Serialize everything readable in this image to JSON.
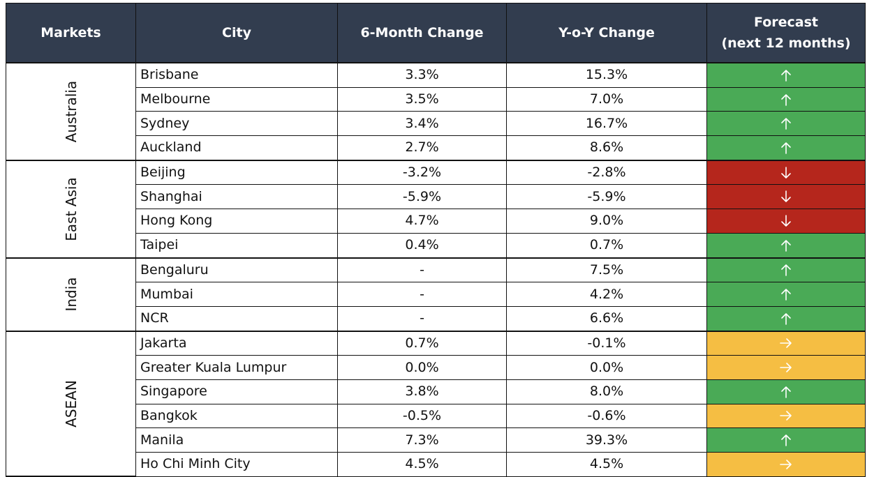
{
  "table": {
    "headers": {
      "markets": "Markets",
      "city": "City",
      "six_month": "6-Month Change",
      "yoy": "Y-o-Y Change",
      "forecast_line1": "Forecast",
      "forecast_line2": "(next 12 months)"
    },
    "forecast_legend": {
      "up": {
        "symbol": "↑",
        "color": "#4aaa56"
      },
      "down": {
        "symbol": "↓",
        "color": "#b5261c"
      },
      "flat": {
        "symbol": "→",
        "color": "#f5be43"
      }
    },
    "groups": [
      {
        "market": "Australia",
        "rows": [
          {
            "city": "Brisbane",
            "six_month": "3.3%",
            "yoy": "15.3%",
            "forecast": "up"
          },
          {
            "city": "Melbourne",
            "six_month": "3.5%",
            "yoy": "7.0%",
            "forecast": "up"
          },
          {
            "city": "Sydney",
            "six_month": "3.4%",
            "yoy": "16.7%",
            "forecast": "up"
          },
          {
            "city": "Auckland",
            "six_month": "2.7%",
            "yoy": "8.6%",
            "forecast": "up"
          }
        ]
      },
      {
        "market": "East Asia",
        "rows": [
          {
            "city": "Beijing",
            "six_month": "-3.2%",
            "yoy": "-2.8%",
            "forecast": "down"
          },
          {
            "city": "Shanghai",
            "six_month": "-5.9%",
            "yoy": "-5.9%",
            "forecast": "down"
          },
          {
            "city": "Hong Kong",
            "six_month": "4.7%",
            "yoy": "9.0%",
            "forecast": "down"
          },
          {
            "city": "Taipei",
            "six_month": "0.4%",
            "yoy": "0.7%",
            "forecast": "up"
          }
        ]
      },
      {
        "market": "India",
        "rows": [
          {
            "city": "Bengaluru",
            "six_month": "-",
            "yoy": "7.5%",
            "forecast": "up"
          },
          {
            "city": "Mumbai",
            "six_month": "-",
            "yoy": "4.2%",
            "forecast": "up"
          },
          {
            "city": "NCR",
            "six_month": "-",
            "yoy": "6.6%",
            "forecast": "up"
          }
        ]
      },
      {
        "market": "ASEAN",
        "rows": [
          {
            "city": "Jakarta",
            "six_month": "0.7%",
            "yoy": "-0.1%",
            "forecast": "flat"
          },
          {
            "city": "Greater Kuala Lumpur",
            "six_month": "0.0%",
            "yoy": "0.0%",
            "forecast": "flat"
          },
          {
            "city": "Singapore",
            "six_month": "3.8%",
            "yoy": "8.0%",
            "forecast": "up"
          },
          {
            "city": "Bangkok",
            "six_month": "-0.5%",
            "yoy": "-0.6%",
            "forecast": "flat"
          },
          {
            "city": "Manila",
            "six_month": "7.3%",
            "yoy": "39.3%",
            "forecast": "up"
          },
          {
            "city": "Ho Chi Minh City",
            "six_month": "4.5%",
            "yoy": "4.5%",
            "forecast": "flat"
          }
        ]
      }
    ]
  }
}
